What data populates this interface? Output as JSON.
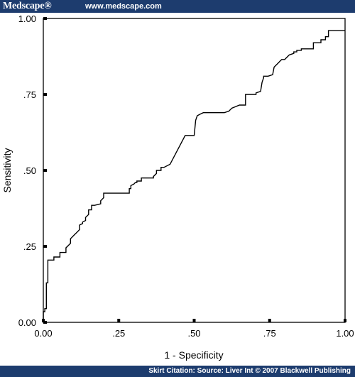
{
  "header": {
    "brand": "Medscape®",
    "url": "www.medscape.com"
  },
  "footer": {
    "citation": "Skirt Citation: Source: Liver Int © 2007 Blackwell Publishing"
  },
  "colors": {
    "bar": "#1d3c6e",
    "line": "#000000"
  },
  "chart_data": {
    "type": "line",
    "title": "",
    "xlabel": "1 - Specificity",
    "ylabel": "Sensitivity",
    "xlim": [
      0,
      1
    ],
    "ylim": [
      0,
      1
    ],
    "grid": false,
    "x_ticks": [
      {
        "value": 0,
        "label": "0.00"
      },
      {
        "value": 0.25,
        "label": ".25"
      },
      {
        "value": 0.5,
        "label": ".50"
      },
      {
        "value": 0.75,
        "label": ".75"
      },
      {
        "value": 1,
        "label": "1.00"
      }
    ],
    "y_ticks": [
      {
        "value": 0,
        "label": "0.00"
      },
      {
        "value": 0.25,
        "label": ".25"
      },
      {
        "value": 0.5,
        "label": ".50"
      },
      {
        "value": 0.75,
        "label": ".75"
      },
      {
        "value": 1,
        "label": "1.00"
      }
    ],
    "series": [
      {
        "x": [
          0.0,
          0.0,
          0.005,
          0.005,
          0.01,
          0.01,
          0.015,
          0.015,
          0.02,
          0.02,
          0.035,
          0.035,
          0.055,
          0.055,
          0.075,
          0.075,
          0.09,
          0.09,
          0.1,
          0.105,
          0.11,
          0.11,
          0.12,
          0.12,
          0.13,
          0.13,
          0.14,
          0.14,
          0.15,
          0.15,
          0.16,
          0.16,
          0.17,
          0.17,
          0.19,
          0.19,
          0.2,
          0.2,
          0.21,
          0.21,
          0.285,
          0.285,
          0.29,
          0.29,
          0.3,
          0.305,
          0.31,
          0.31,
          0.325,
          0.325,
          0.365,
          0.365,
          0.375,
          0.375,
          0.39,
          0.39,
          0.4,
          0.4,
          0.42,
          0.47,
          0.5,
          0.505,
          0.51,
          0.52,
          0.53,
          0.6,
          0.615,
          0.625,
          0.65,
          0.67,
          0.67,
          0.705,
          0.705,
          0.72,
          0.725,
          0.73,
          0.73,
          0.745,
          0.76,
          0.765,
          0.78,
          0.785,
          0.79,
          0.8,
          0.815,
          0.83,
          0.83,
          0.84,
          0.84,
          0.855,
          0.855,
          0.895,
          0.895,
          0.92,
          0.92,
          0.935,
          0.935,
          0.945,
          0.945,
          1.0
        ],
        "y": [
          0.0,
          0.035,
          0.035,
          0.045,
          0.045,
          0.13,
          0.13,
          0.205,
          0.205,
          0.205,
          0.205,
          0.215,
          0.215,
          0.23,
          0.23,
          0.245,
          0.26,
          0.275,
          0.285,
          0.29,
          0.295,
          0.295,
          0.305,
          0.32,
          0.325,
          0.33,
          0.335,
          0.345,
          0.355,
          0.37,
          0.37,
          0.385,
          0.385,
          0.385,
          0.39,
          0.4,
          0.41,
          0.425,
          0.425,
          0.425,
          0.425,
          0.44,
          0.44,
          0.45,
          0.455,
          0.46,
          0.46,
          0.465,
          0.465,
          0.475,
          0.475,
          0.48,
          0.49,
          0.5,
          0.5,
          0.51,
          0.51,
          0.51,
          0.52,
          0.615,
          0.615,
          0.665,
          0.68,
          0.685,
          0.69,
          0.69,
          0.695,
          0.705,
          0.715,
          0.715,
          0.75,
          0.75,
          0.755,
          0.76,
          0.79,
          0.805,
          0.81,
          0.81,
          0.815,
          0.84,
          0.855,
          0.86,
          0.865,
          0.865,
          0.88,
          0.885,
          0.89,
          0.89,
          0.895,
          0.895,
          0.9,
          0.9,
          0.92,
          0.92,
          0.93,
          0.93,
          0.94,
          0.94,
          0.96,
          0.96
        ]
      }
    ]
  }
}
